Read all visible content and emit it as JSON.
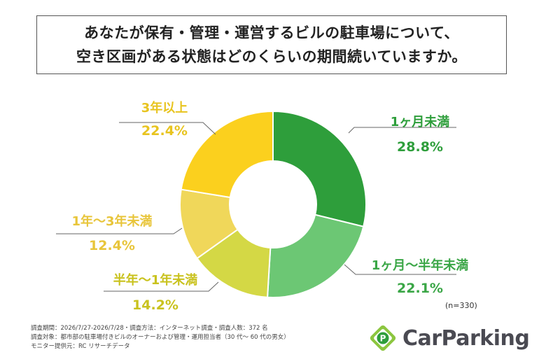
{
  "title": {
    "line1": "あなたが保有・管理・運営するビルの駐車場について、",
    "line2": "空き区画がある状態はどのくらいの期間続いていますか。"
  },
  "chart_data": {
    "type": "pie",
    "donut": true,
    "series": [
      {
        "label": "1ヶ月未満",
        "value": 28.8,
        "value_text": "28.8%",
        "color": "#2e9e3b",
        "text_color": "#2e9e3b"
      },
      {
        "label": "1ヶ月〜半年未満",
        "value": 22.1,
        "value_text": "22.1%",
        "color": "#6cc774",
        "text_color": "#3aa646"
      },
      {
        "label": "半年〜1年未満",
        "value": 14.2,
        "value_text": "14.2%",
        "color": "#d4d845",
        "text_color": "#c9c21e"
      },
      {
        "label": "1年〜3年未満",
        "value": 12.4,
        "value_text": "12.4%",
        "color": "#f0d75a",
        "text_color": "#e8c53a"
      },
      {
        "label": "3年以上",
        "value": 22.4,
        "value_text": "22.4%",
        "color": "#fbd01e",
        "text_color": "#e8c41f"
      }
    ]
  },
  "n_label": "(n=330)",
  "notes": [
    "調査期間：2026/7/27-2026/7/28・調査方法：インターネット調査・調査人数：372 名",
    "調査対象：都市部の駐車場付きビルのオーナーおよび管理・運用担当者（30 代～ 60 代の男女）",
    "モニター提供元：RC リサーチデータ"
  ],
  "logo": {
    "text": "CarParking",
    "letter": "P",
    "colors": {
      "outer": "#8cc63f",
      "inner": "#2e9e3b"
    }
  }
}
